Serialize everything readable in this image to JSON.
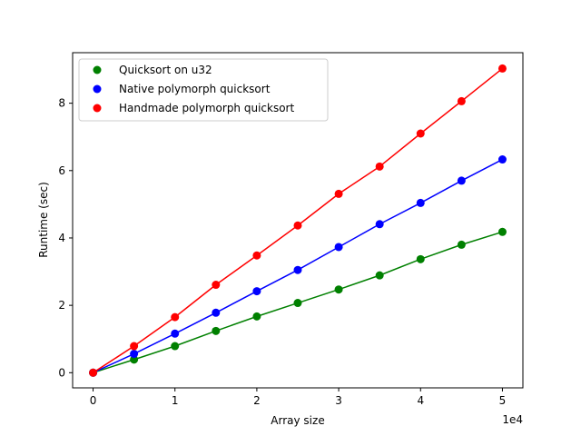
{
  "chart_data": {
    "type": "line",
    "title": "",
    "xlabel": "Array size",
    "ylabel": "Runtime (sec)",
    "x_offset_label": "1e4",
    "x_tick_values": [
      0,
      1,
      2,
      3,
      4,
      5
    ],
    "x_tick_labels": [
      "0",
      "1",
      "2",
      "3",
      "4",
      "5"
    ],
    "y_tick_values": [
      0,
      2,
      4,
      6,
      8
    ],
    "y_tick_labels": [
      "0",
      "2",
      "4",
      "6",
      "8"
    ],
    "xlim": [
      -0.25,
      5.25
    ],
    "ylim": [
      -0.45,
      9.5
    ],
    "grid": false,
    "legend": "top-left",
    "x": [
      0,
      0.5,
      1.0,
      1.5,
      2.0,
      2.5,
      3.0,
      3.5,
      4.0,
      4.5,
      5.0
    ],
    "series": [
      {
        "name": "Quicksort on u32",
        "color": "#008000",
        "values": [
          0.0,
          0.39,
          0.79,
          1.24,
          1.67,
          2.07,
          2.47,
          2.89,
          3.37,
          3.8,
          4.18
        ]
      },
      {
        "name": "Native polymorph quicksort",
        "color": "#0000ff",
        "values": [
          0.0,
          0.56,
          1.16,
          1.78,
          2.42,
          3.05,
          3.73,
          4.41,
          5.04,
          5.7,
          6.33
        ]
      },
      {
        "name": "Handmade polymorph quicksort",
        "color": "#ff0000",
        "values": [
          0.0,
          0.79,
          1.65,
          2.61,
          3.48,
          4.37,
          5.31,
          6.12,
          7.1,
          8.06,
          9.03
        ]
      }
    ]
  }
}
